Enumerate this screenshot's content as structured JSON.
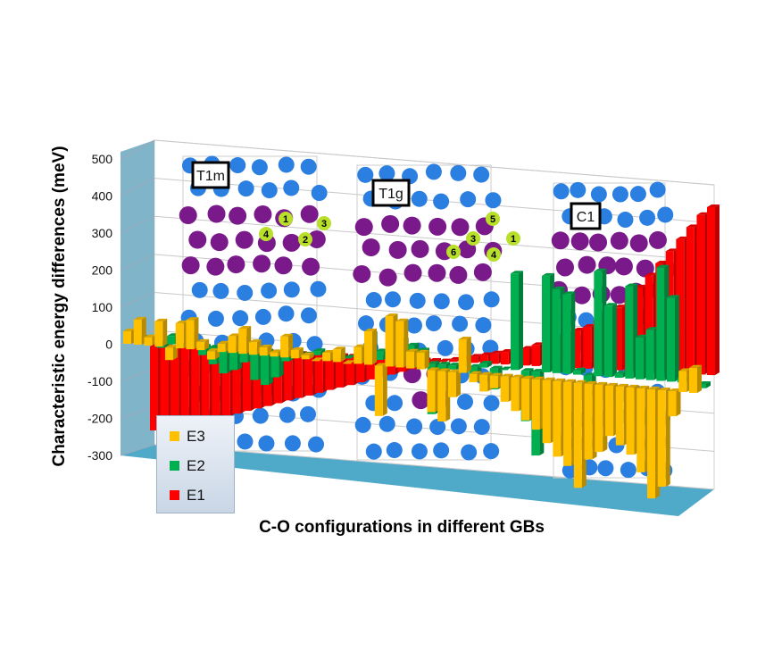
{
  "chart_data": {
    "type": "bar",
    "subtype": "3d-clustered-column",
    "title": "",
    "xlabel": "C-O configurations in different GBs",
    "ylabel": "Characteristic energy differences (meV)",
    "ylim": [
      -300,
      500
    ],
    "yticks": [
      "500",
      "400",
      "300",
      "200",
      "100",
      "0",
      "-100",
      "-200",
      "-300"
    ],
    "grid": true,
    "legend_position": "bottom-left",
    "groups": [
      "T1m",
      "T1g",
      "C1"
    ],
    "site_labels": {
      "T1m": [
        "1",
        "2",
        "3",
        "4"
      ],
      "T1g": [
        "1",
        "3",
        "4",
        "5",
        "6"
      ]
    },
    "series": [
      {
        "name": "E1",
        "color": "#ff0000",
        "values": [
          -200,
          -195,
          -190,
          -185,
          -180,
          -172,
          -165,
          -158,
          -150,
          -142,
          -135,
          -128,
          -120,
          -112,
          -105,
          -98,
          -90,
          -82,
          -75,
          -68,
          -60,
          -52,
          -45,
          -38,
          -30,
          -22,
          -15,
          -8,
          0,
          5,
          10,
          15,
          20,
          25,
          30,
          35,
          40,
          50,
          60,
          70,
          80,
          90,
          100,
          115,
          130,
          150,
          170,
          200,
          230,
          260,
          290,
          320,
          350,
          380,
          400
        ]
      },
      {
        "name": "E2",
        "color": "#00b050",
        "values": [
          10,
          5,
          -10,
          20,
          -5,
          0,
          -20,
          -40,
          -60,
          -50,
          -30,
          -70,
          -80,
          -60,
          -20,
          -10,
          0,
          10,
          -10,
          -5,
          0,
          20,
          60,
          20,
          -10,
          50,
          40,
          30,
          -120,
          -20,
          -10,
          0,
          -20,
          10,
          -50,
          0,
          230,
          -120,
          -200,
          230,
          200,
          190,
          10,
          -20,
          250,
          170,
          10,
          220,
          100,
          120,
          270,
          200,
          10,
          0,
          -10
        ]
      },
      {
        "name": "E3",
        "color": "#ffc000",
        "values": [
          30,
          60,
          20,
          60,
          -30,
          60,
          70,
          20,
          -20,
          20,
          40,
          60,
          30,
          20,
          10,
          50,
          20,
          10,
          0,
          20,
          30,
          0,
          40,
          80,
          -120,
          120,
          110,
          40,
          40,
          -100,
          -120,
          -60,
          80,
          -20,
          -40,
          -30,
          -60,
          -80,
          -100,
          -120,
          -150,
          -180,
          -200,
          -250,
          -180,
          -160,
          -120,
          -140,
          -160,
          -200,
          -260,
          -230,
          -60,
          50,
          60
        ]
      }
    ]
  },
  "legend": [
    {
      "label": "E3",
      "color": "#ffc000"
    },
    {
      "label": "E2",
      "color": "#00b050"
    },
    {
      "label": "E1",
      "color": "#ff0000"
    }
  ]
}
